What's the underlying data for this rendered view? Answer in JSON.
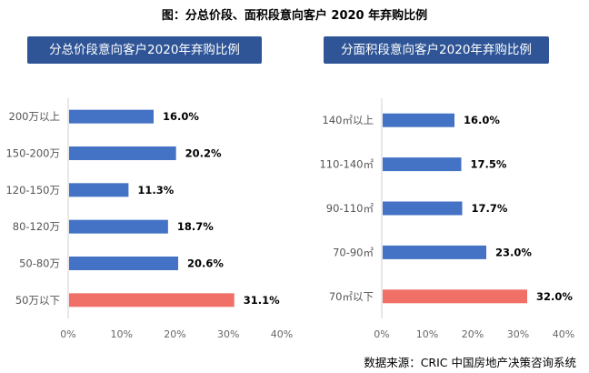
{
  "figure_title": "图：分总价段、面积段意向客户 2020 年弃购比例",
  "source": "数据来源：CRIC 中国房地产决策咨询系统",
  "colors": {
    "default_bar": "#4472c4",
    "highlight_bar": "#f07068",
    "title_bg": "#2f5597"
  },
  "chart_data": [
    {
      "type": "bar",
      "orientation": "horizontal",
      "title": "分总价段意向客户2020年弃购比例",
      "categories": [
        "200万以上",
        "150-200万",
        "120-150万",
        "80-120万",
        "50-80万",
        "50万以下"
      ],
      "values": [
        16.0,
        20.2,
        11.3,
        18.7,
        20.6,
        31.1
      ],
      "value_labels": [
        "16.0%",
        "20.2%",
        "11.3%",
        "18.7%",
        "20.6%",
        "31.1%"
      ],
      "highlight_index": 5,
      "xlim": [
        0,
        40
      ],
      "xticks": [
        "0%",
        "10%",
        "20%",
        "30%",
        "40%"
      ],
      "grid": false
    },
    {
      "type": "bar",
      "orientation": "horizontal",
      "title": "分面积段意向客户2020年弃购比例",
      "categories": [
        "140㎡以上",
        "110-140㎡",
        "90-110㎡",
        "70-90㎡",
        "70㎡以下"
      ],
      "values": [
        16.0,
        17.5,
        17.7,
        23.0,
        32.0
      ],
      "value_labels": [
        "16.0%",
        "17.5%",
        "17.7%",
        "23.0%",
        "32.0%"
      ],
      "highlight_index": 4,
      "xlim": [
        0,
        40
      ],
      "xticks": [
        "0%",
        "10%",
        "20%",
        "30%",
        "40%"
      ],
      "grid": false
    }
  ]
}
